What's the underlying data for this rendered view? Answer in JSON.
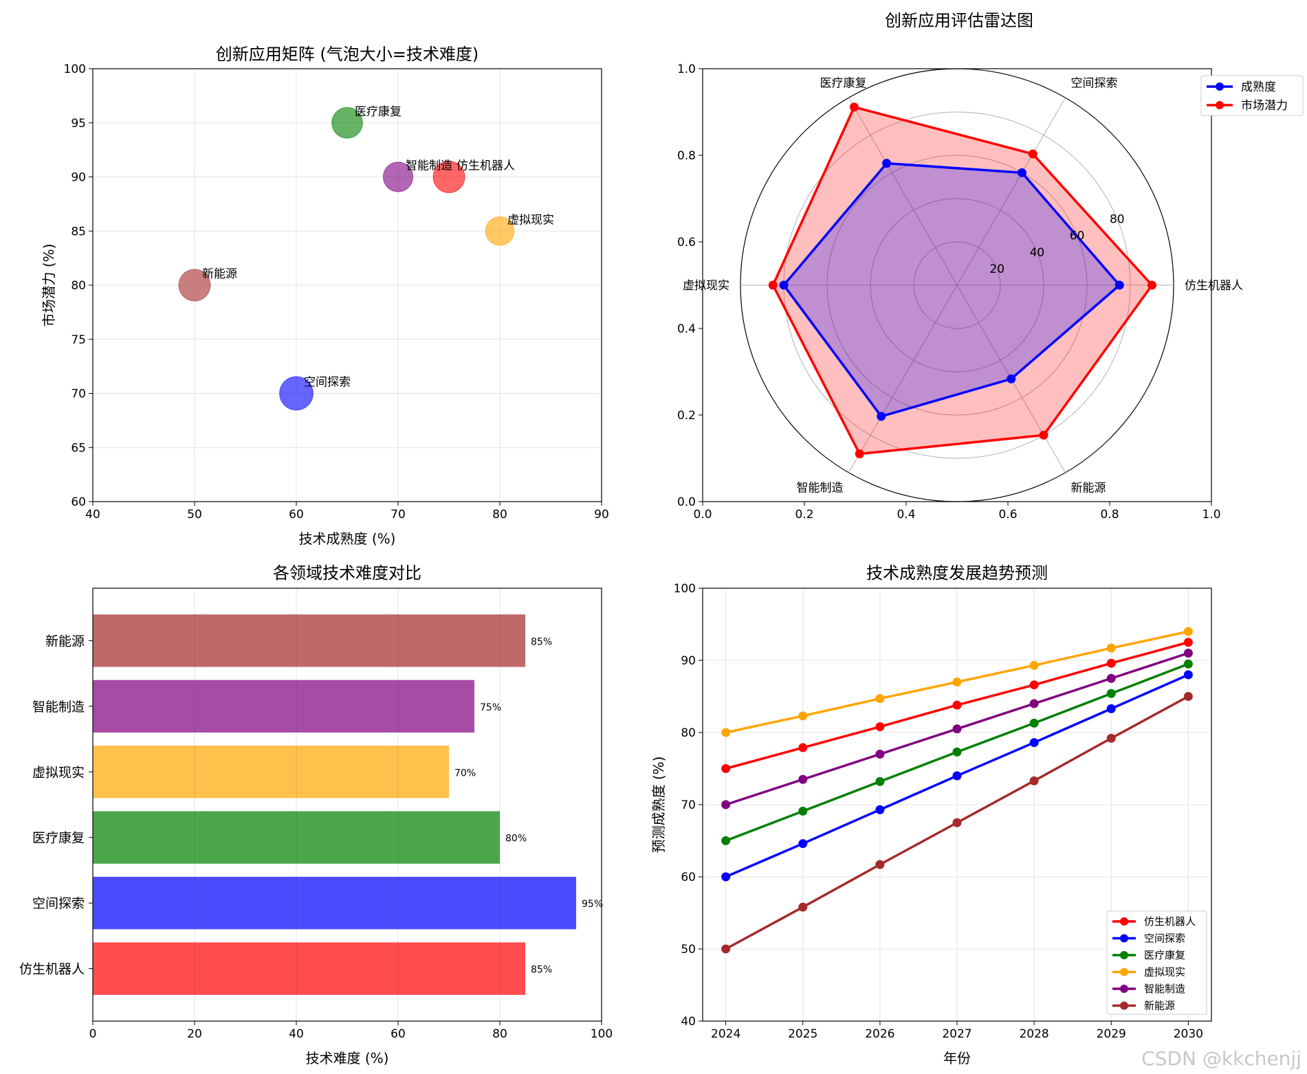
{
  "watermark": "CSDN @kkchenjj",
  "chart_data": [
    {
      "type": "scatter",
      "title": "创新应用矩阵 (气泡大小=技术难度)",
      "xlabel": "技术成熟度 (%)",
      "ylabel": "市场潜力 (%)",
      "xlim": [
        40,
        90
      ],
      "ylim": [
        60,
        100
      ],
      "xticks": [
        40,
        50,
        60,
        70,
        80,
        90
      ],
      "yticks": [
        60,
        65,
        70,
        75,
        80,
        85,
        90,
        95,
        100
      ],
      "grid": true,
      "points": [
        {
          "label": "仿生机器人",
          "x": 75,
          "y": 90,
          "size": 85,
          "color": "#ff0000"
        },
        {
          "label": "空间探索",
          "x": 60,
          "y": 70,
          "size": 95,
          "color": "#0000ff"
        },
        {
          "label": "医疗康复",
          "x": 65,
          "y": 95,
          "size": 80,
          "color": "#008000"
        },
        {
          "label": "虚拟现实",
          "x": 80,
          "y": 85,
          "size": 70,
          "color": "#ffa500"
        },
        {
          "label": "智能制造",
          "x": 70,
          "y": 90,
          "size": 75,
          "color": "#800080"
        },
        {
          "label": "新能源",
          "x": 50,
          "y": 80,
          "size": 85,
          "color": "#a52a2a"
        }
      ]
    },
    {
      "type": "radar",
      "title": "创新应用评估雷达图",
      "categories": [
        "仿生机器人",
        "空间探索",
        "医疗康复",
        "虚拟现实",
        "智能制造",
        "新能源"
      ],
      "rlim": [
        0,
        100
      ],
      "rticks": [
        20,
        40,
        60,
        80
      ],
      "outer_xticks": [
        "0.0",
        "0.2",
        "0.4",
        "0.6",
        "0.8",
        "1.0"
      ],
      "outer_yticks": [
        "0.0",
        "0.2",
        "0.4",
        "0.6",
        "0.8",
        "1.0"
      ],
      "legend_position": "top-right",
      "series": [
        {
          "name": "成熟度",
          "color": "#0000ff",
          "values": [
            75,
            60,
            65,
            80,
            70,
            50
          ]
        },
        {
          "name": "市场潜力",
          "color": "#ff0000",
          "values": [
            90,
            70,
            95,
            85,
            90,
            80
          ]
        }
      ]
    },
    {
      "type": "bar",
      "orientation": "horizontal",
      "title": "各领域技术难度对比",
      "xlabel": "技术难度 (%)",
      "xlim": [
        0,
        100
      ],
      "xticks": [
        0,
        20,
        40,
        60,
        80,
        100
      ],
      "categories": [
        "仿生机器人",
        "空间探索",
        "医疗康复",
        "虚拟现实",
        "智能制造",
        "新能源"
      ],
      "values": [
        85,
        95,
        80,
        70,
        75,
        85
      ],
      "value_labels": [
        "85%",
        "95%",
        "80%",
        "70%",
        "75%",
        "85%"
      ],
      "colors": [
        "#ff0000",
        "#0000ff",
        "#008000",
        "#ffa500",
        "#800080",
        "#a52a2a"
      ],
      "grid": true
    },
    {
      "type": "line",
      "title": "技术成熟度发展趋势预测",
      "xlabel": "年份",
      "ylabel": "预测成熟度 (%)",
      "x": [
        2024,
        2025,
        2026,
        2027,
        2028,
        2029,
        2030
      ],
      "ylim": [
        40,
        100
      ],
      "yticks": [
        40,
        50,
        60,
        70,
        80,
        90,
        100
      ],
      "legend_position": "bottom-right",
      "grid": true,
      "series": [
        {
          "name": "仿生机器人",
          "color": "#ff0000",
          "values": [
            75,
            77.9,
            80.8,
            83.8,
            86.6,
            89.6,
            92.5
          ]
        },
        {
          "name": "空间探索",
          "color": "#0000ff",
          "values": [
            60,
            64.6,
            69.3,
            74.0,
            78.6,
            83.3,
            88.0
          ]
        },
        {
          "name": "医疗康复",
          "color": "#008000",
          "values": [
            65,
            69.1,
            73.2,
            77.3,
            81.3,
            85.4,
            89.5
          ]
        },
        {
          "name": "虚拟现实",
          "color": "#ffa500",
          "values": [
            80,
            82.3,
            84.7,
            87.0,
            89.3,
            91.7,
            94.0
          ]
        },
        {
          "name": "智能制造",
          "color": "#800080",
          "values": [
            70,
            73.5,
            77.0,
            80.5,
            84.0,
            87.5,
            91.0
          ]
        },
        {
          "name": "新能源",
          "color": "#a52a2a",
          "values": [
            50,
            55.8,
            61.7,
            67.5,
            73.3,
            79.2,
            85.0
          ]
        }
      ]
    }
  ]
}
